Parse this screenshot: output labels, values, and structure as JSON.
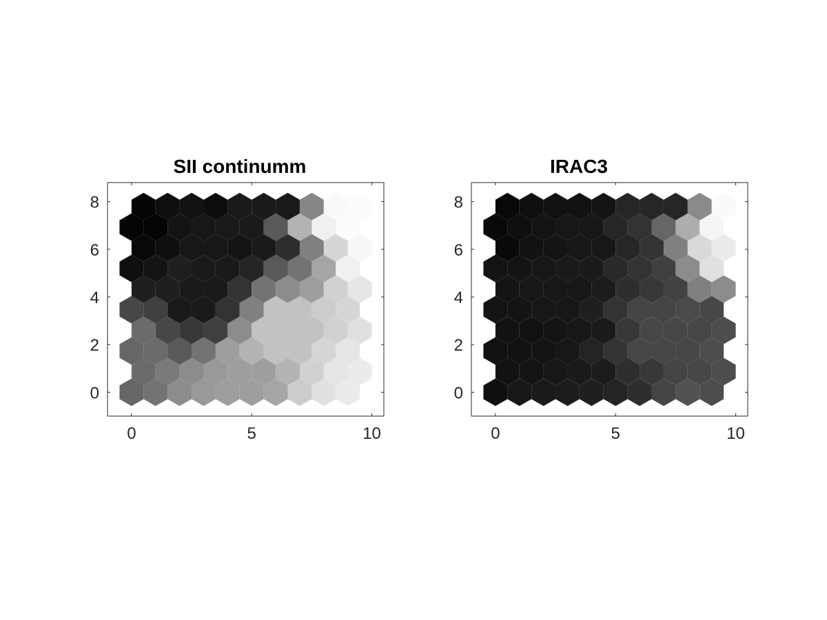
{
  "chart_data": [
    {
      "type": "heatmap",
      "subtype": "hexagonal-som-grid",
      "title": "SII continumm",
      "xlabel": "",
      "ylabel": "",
      "xlim": [
        -1,
        10.5
      ],
      "ylim": [
        -1,
        8.8
      ],
      "xticks": [
        0,
        5,
        10
      ],
      "yticks": [
        0,
        2,
        4,
        6,
        8
      ],
      "colormap": "gray",
      "rows": 10,
      "cols": 10,
      "row_spacing": 0.866,
      "odd_row_offset": 0.5,
      "hex_size": 0.577,
      "values": [
        [
          0.4,
          0.45,
          0.55,
          0.6,
          0.62,
          0.62,
          0.65,
          0.8,
          0.88,
          0.92
        ],
        [
          0.42,
          0.48,
          0.55,
          0.6,
          0.62,
          0.62,
          0.7,
          0.82,
          0.9,
          0.92
        ],
        [
          0.4,
          0.42,
          0.35,
          0.45,
          0.62,
          0.7,
          0.76,
          0.76,
          0.84,
          0.9
        ],
        [
          0.42,
          0.28,
          0.22,
          0.25,
          0.55,
          0.76,
          0.76,
          0.76,
          0.82,
          0.88
        ],
        [
          0.28,
          0.25,
          0.1,
          0.1,
          0.2,
          0.5,
          0.76,
          0.76,
          0.8,
          0.84
        ],
        [
          0.12,
          0.12,
          0.1,
          0.1,
          0.2,
          0.45,
          0.55,
          0.62,
          0.82,
          0.9
        ],
        [
          0.06,
          0.08,
          0.12,
          0.1,
          0.1,
          0.14,
          0.35,
          0.45,
          0.65,
          0.94
        ],
        [
          0.03,
          0.06,
          0.09,
          0.09,
          0.08,
          0.1,
          0.18,
          0.5,
          0.84,
          0.97
        ],
        [
          0.02,
          0.02,
          0.08,
          0.09,
          0.1,
          0.1,
          0.35,
          0.7,
          0.94,
          0.99
        ],
        [
          0.02,
          0.06,
          0.07,
          0.05,
          0.1,
          0.1,
          0.1,
          0.53,
          0.98,
          0.99
        ]
      ]
    },
    {
      "type": "heatmap",
      "subtype": "hexagonal-som-grid",
      "title": "IRAC3",
      "xlabel": "",
      "ylabel": "",
      "xlim": [
        -1,
        10.5
      ],
      "ylim": [
        -1,
        8.8
      ],
      "xticks": [
        0,
        5,
        10
      ],
      "yticks": [
        0,
        2,
        4,
        6,
        8
      ],
      "colormap": "gray",
      "rows": 10,
      "cols": 10,
      "row_spacing": 0.866,
      "odd_row_offset": 0.5,
      "hex_size": 0.577,
      "values": [
        [
          0.06,
          0.09,
          0.1,
          0.11,
          0.12,
          0.14,
          0.18,
          0.27,
          0.32,
          0.3
        ],
        [
          0.07,
          0.08,
          0.09,
          0.1,
          0.11,
          0.18,
          0.22,
          0.27,
          0.28,
          0.3
        ],
        [
          0.07,
          0.07,
          0.08,
          0.09,
          0.14,
          0.2,
          0.28,
          0.28,
          0.28,
          0.3
        ],
        [
          0.07,
          0.07,
          0.08,
          0.09,
          0.1,
          0.22,
          0.28,
          0.28,
          0.28,
          0.3
        ],
        [
          0.08,
          0.08,
          0.09,
          0.09,
          0.12,
          0.2,
          0.27,
          0.27,
          0.29,
          0.28
        ],
        [
          0.08,
          0.09,
          0.09,
          0.09,
          0.11,
          0.18,
          0.22,
          0.26,
          0.5,
          0.55
        ],
        [
          0.08,
          0.08,
          0.09,
          0.1,
          0.1,
          0.16,
          0.2,
          0.25,
          0.55,
          0.88
        ],
        [
          0.04,
          0.07,
          0.08,
          0.09,
          0.09,
          0.15,
          0.2,
          0.5,
          0.85,
          0.92
        ],
        [
          0.03,
          0.06,
          0.08,
          0.09,
          0.09,
          0.15,
          0.2,
          0.4,
          0.68,
          0.96
        ],
        [
          0.03,
          0.06,
          0.07,
          0.07,
          0.08,
          0.15,
          0.15,
          0.15,
          0.54,
          0.98
        ]
      ]
    }
  ]
}
